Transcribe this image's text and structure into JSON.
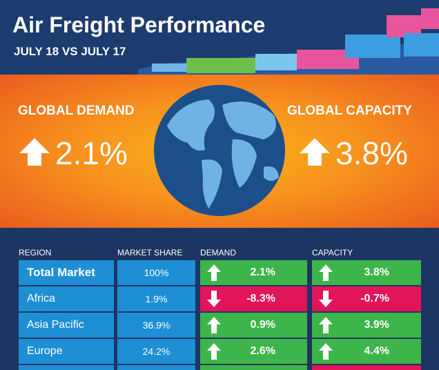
{
  "header": {
    "title": "Air Freight Performance",
    "subtitle": "JULY 18 VS JULY 17"
  },
  "summary": {
    "demand": {
      "label": "GLOBAL DEMAND",
      "value": "2.1%"
    },
    "capacity": {
      "label": "GLOBAL CAPACITY",
      "value": "3.8%"
    }
  },
  "table": {
    "columns": [
      "REGION",
      "MARKET SHARE",
      "DEMAND",
      "CAPACITY"
    ],
    "rows": [
      [
        "Total Market",
        "100%",
        "2.1%",
        "3.8%"
      ],
      [
        "Africa",
        "1.9%",
        "-8.3%",
        "-0.7%"
      ],
      [
        "Asia Pacific",
        "36.9%",
        "0.9%",
        "3.9%"
      ],
      [
        "Europe",
        "24.2%",
        "2.6%",
        "4.4%"
      ]
    ]
  }
}
